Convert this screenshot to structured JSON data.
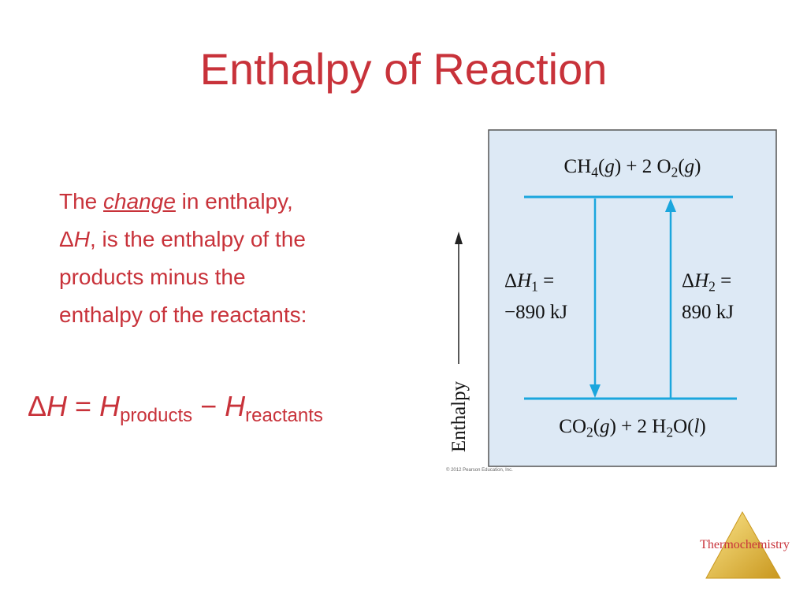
{
  "title": "Enthalpy of Reaction",
  "body": {
    "lines": [
      [
        {
          "text": "The "
        },
        {
          "em": "change"
        },
        {
          "text": " in enthalpy,"
        }
      ],
      [
        {
          "text": "Δ"
        },
        {
          "i": "H"
        },
        {
          "text": ", is the enthalpy of the"
        }
      ],
      [
        {
          "text": "products minus the"
        }
      ],
      [
        {
          "text": "enthalpy of the reactants:"
        }
      ]
    ]
  },
  "equation": [
    {
      "text": "Δ"
    },
    {
      "i": "H"
    },
    {
      "text": " = "
    },
    {
      "i": "H"
    },
    {
      "sub": "products"
    },
    {
      "text": " − "
    },
    {
      "i": "H"
    },
    {
      "sub": "reactants"
    }
  ],
  "diagram": {
    "axis_label": "Enthalpy",
    "top_state": [
      {
        "text": "CH"
      },
      {
        "sub": "4"
      },
      {
        "text": "("
      },
      {
        "i": "g"
      },
      {
        "text": ") + 2 O"
      },
      {
        "sub": "2"
      },
      {
        "text": "("
      },
      {
        "i": "g"
      },
      {
        "text": ")"
      }
    ],
    "bottom_state": [
      {
        "text": "CO"
      },
      {
        "sub": "2"
      },
      {
        "text": "("
      },
      {
        "i": "g"
      },
      {
        "text": ") + 2 H"
      },
      {
        "sub": "2"
      },
      {
        "text": "O("
      },
      {
        "i": "l"
      },
      {
        "text": ")"
      }
    ],
    "left_label": {
      "lines": [
        [
          {
            "text": "Δ"
          },
          {
            "i": "H"
          },
          {
            "sub": "1"
          },
          {
            "text": " ="
          }
        ],
        [
          {
            "text": "−890 kJ"
          }
        ]
      ]
    },
    "right_label": {
      "lines": [
        [
          {
            "text": "Δ"
          },
          {
            "i": "H"
          },
          {
            "sub": "2"
          },
          {
            "text": " ="
          }
        ],
        [
          {
            "text": "890 kJ"
          }
        ]
      ]
    },
    "credit": "© 2012 Pearson Education, Inc."
  },
  "footer": "Thermochemistry"
}
